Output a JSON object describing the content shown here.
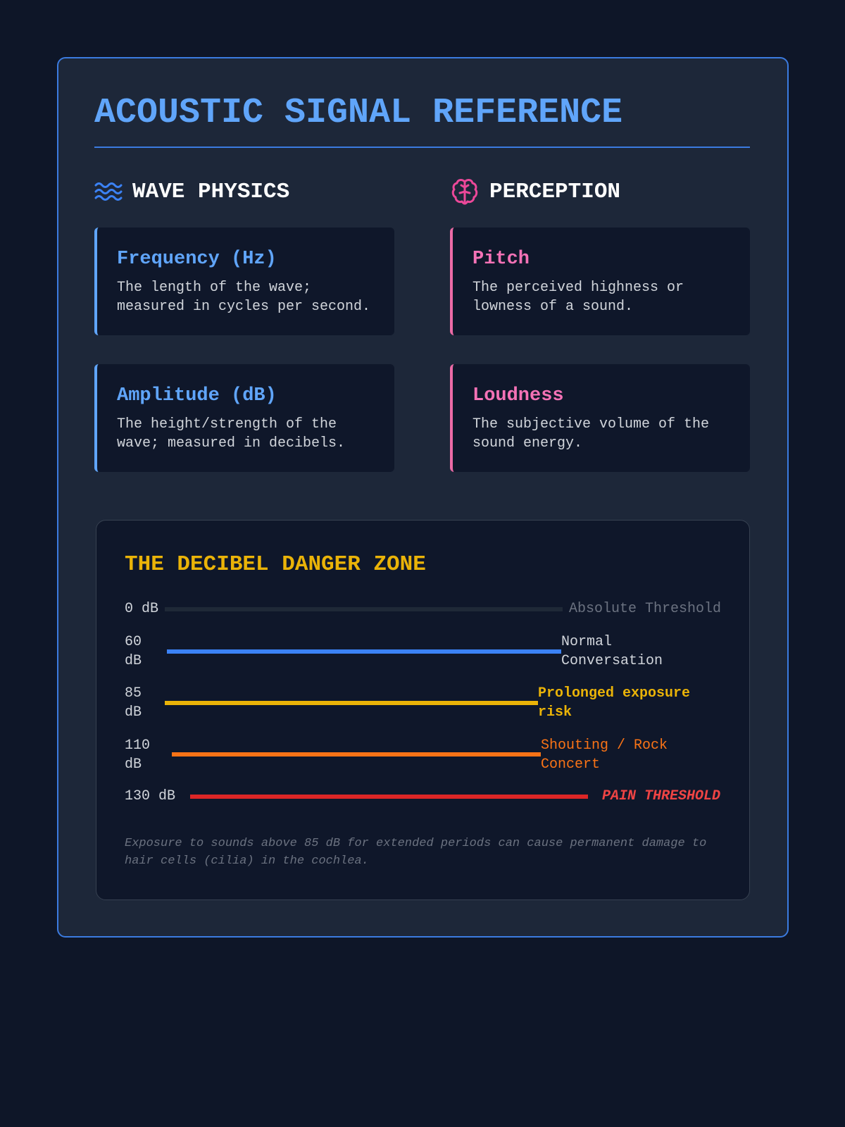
{
  "title": "ACOUSTIC SIGNAL REFERENCE",
  "columns": [
    {
      "heading": "WAVE PHYSICS",
      "icon": "waves-icon",
      "accent": "#60a5fa",
      "cards": [
        {
          "title": "Frequency (Hz)",
          "description": "The length of the wave; measured in cycles per second."
        },
        {
          "title": "Amplitude (dB)",
          "description": "The height/strength of the wave; measured in decibels."
        }
      ]
    },
    {
      "heading": "PERCEPTION",
      "icon": "brain-icon",
      "accent": "#f472b6",
      "cards": [
        {
          "title": "Pitch",
          "description": "The perceived highness or lowness of a sound."
        },
        {
          "title": "Loudness",
          "description": "The subjective volume of the sound energy."
        }
      ]
    }
  ],
  "danger_zone": {
    "title": "THE DECIBEL DANGER ZONE",
    "levels": [
      {
        "db": "0 dB",
        "label": "Absolute Threshold",
        "color": "#1f2937",
        "label_color": "#6b7280"
      },
      {
        "db": "60 dB",
        "label": "Normal Conversation",
        "color": "#3b82f6",
        "label_color": "#d1d5db"
      },
      {
        "db": "85 dB",
        "label": "Prolonged exposure risk",
        "color": "#eab308",
        "label_color": "#eab308"
      },
      {
        "db": "110 dB",
        "label": "Shouting / Rock Concert",
        "color": "#f97316",
        "label_color": "#f97316"
      },
      {
        "db": "130 dB",
        "label": "PAIN THRESHOLD",
        "color": "#dc2626",
        "label_color": "#ef4444"
      }
    ],
    "footnote": "Exposure to sounds above 85 dB for extended periods can cause permanent damage to hair cells (cilia) in the cochlea."
  }
}
